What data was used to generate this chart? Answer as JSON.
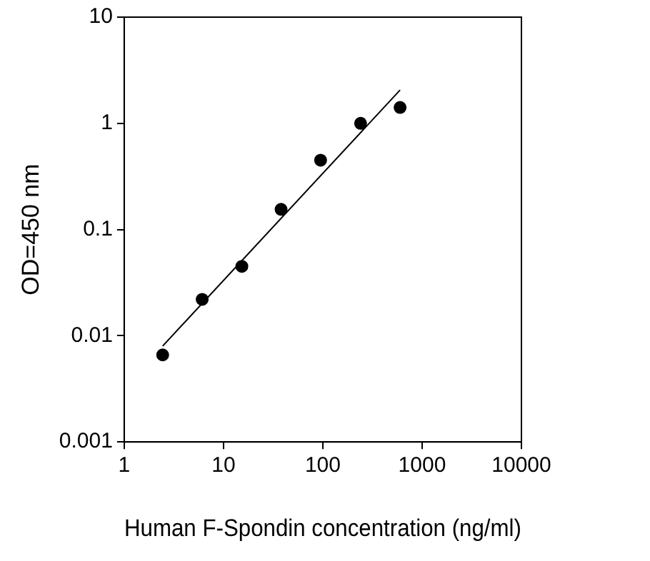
{
  "chart_data": {
    "type": "scatter",
    "xlabel": "Human F-Spondin concentration (ng/ml)",
    "ylabel": "OD=450 nm",
    "log": "xy",
    "xlim": [
      1,
      10000
    ],
    "ylim": [
      0.001,
      10
    ],
    "xticks": [
      1,
      10,
      100,
      1000,
      10000
    ],
    "yticks": [
      0.001,
      0.01,
      0.1,
      1,
      10
    ],
    "grid": false,
    "legend": false,
    "marker": "circle",
    "series": [
      {
        "color": "#000000",
        "x": [
          2.44,
          6.1,
          15.3,
          38,
          95,
          240,
          600
        ],
        "values": [
          0.0066,
          0.022,
          0.045,
          0.155,
          0.45,
          1.0,
          1.41
        ]
      },
      {
        "type": "line",
        "color": "#000000",
        "x": [
          2.44,
          600
        ],
        "values": [
          0.008,
          2.06
        ],
        "line_style": "solid",
        "marker": "none"
      }
    ]
  }
}
